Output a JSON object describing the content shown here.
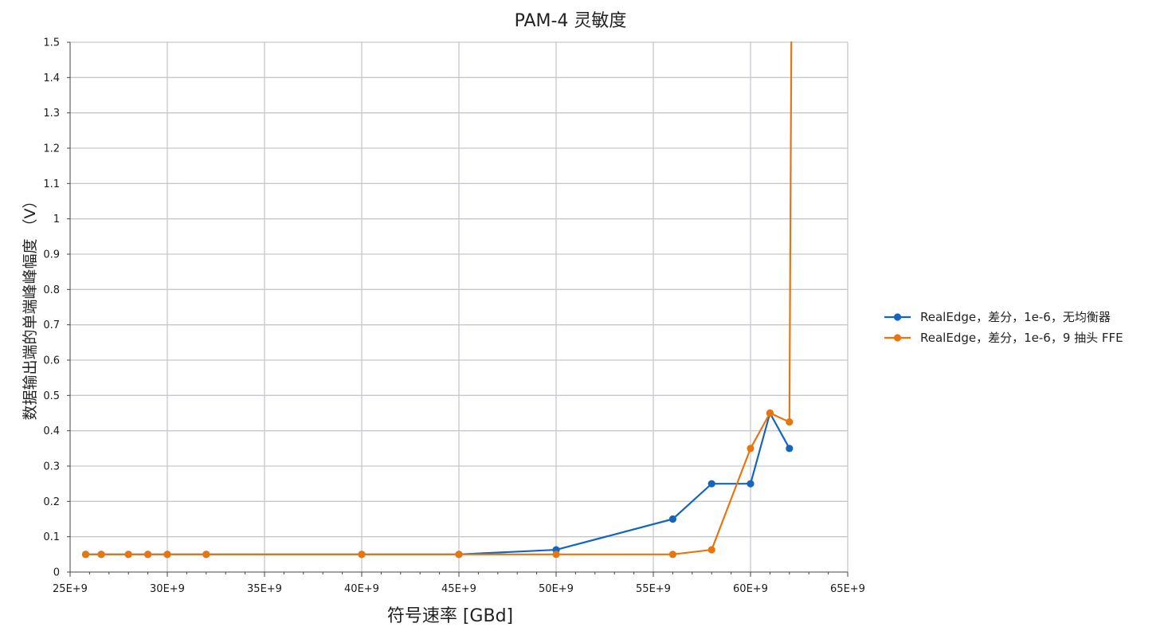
{
  "chart_data": {
    "type": "line",
    "title": "PAM-4 灵敏度",
    "xlabel": "符号速率 [GBd]",
    "ylabel": "数据输出端的单端峰峰幅度 （V）",
    "xlim": [
      25000000000.0,
      65000000000.0
    ],
    "ylim": [
      0,
      1.5
    ],
    "x_ticks": [
      25000000000.0,
      30000000000.0,
      35000000000.0,
      40000000000.0,
      45000000000.0,
      50000000000.0,
      55000000000.0,
      60000000000.0,
      65000000000.0
    ],
    "x_tick_labels": [
      "25E+9",
      "30E+9",
      "35E+9",
      "40E+9",
      "45E+9",
      "50E+9",
      "55E+9",
      "60E+9",
      "65E+9"
    ],
    "y_ticks": [
      0,
      0.1,
      0.2,
      0.3,
      0.4,
      0.5,
      0.6,
      0.7,
      0.8,
      0.9,
      1,
      1.1,
      1.2,
      1.3,
      1.4,
      1.5
    ],
    "y_tick_labels": [
      "0",
      "0.1",
      "0.2",
      "0.3",
      "0.4",
      "0.5",
      "0.6",
      "0.7",
      "0.8",
      "0.9",
      "1",
      "1.1",
      "1.2",
      "1.3",
      "1.4",
      "1.5"
    ],
    "grid": true,
    "legend_position": "right",
    "series": [
      {
        "name": "RealEdge，差分，1e-6，无均衡器",
        "color": "#1565c0",
        "x": [
          25800000000.0,
          26600000000.0,
          28000000000.0,
          29000000000.0,
          30000000000.0,
          32000000000.0,
          40000000000.0,
          45000000000.0,
          50000000000.0,
          56000000000.0,
          58000000000.0,
          60000000000.0,
          61000000000.0,
          62000000000.0
        ],
        "y": [
          0.05,
          0.05,
          0.05,
          0.05,
          0.05,
          0.05,
          0.05,
          0.05,
          0.063,
          0.15,
          0.25,
          0.25,
          0.45,
          0.35
        ]
      },
      {
        "name": "RealEdge，差分，1e-6，9 抽头 FFE",
        "color": "#e8760f",
        "x": [
          25800000000.0,
          26600000000.0,
          28000000000.0,
          29000000000.0,
          30000000000.0,
          32000000000.0,
          40000000000.0,
          45000000000.0,
          50000000000.0,
          56000000000.0,
          58000000000.0,
          60000000000.0,
          61000000000.0,
          62000000000.0
        ],
        "y": [
          0.05,
          0.05,
          0.05,
          0.05,
          0.05,
          0.05,
          0.05,
          0.05,
          0.05,
          0.05,
          0.063,
          0.35,
          0.45,
          0.425
        ],
        "extends_above_ymax_at_x": 62100000000.0
      }
    ]
  }
}
